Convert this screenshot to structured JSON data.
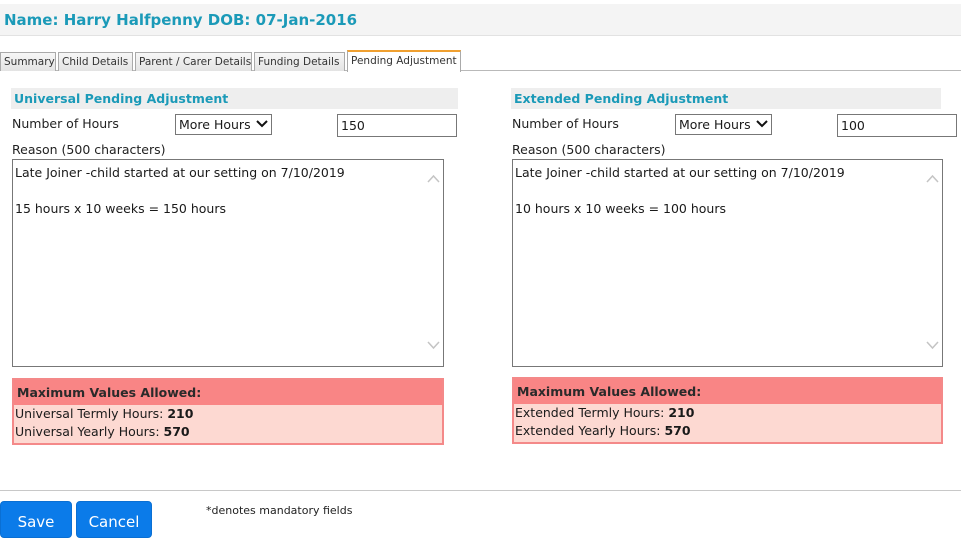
{
  "header": {
    "title": "Name: Harry Halfpenny DOB: 07-Jan-2016"
  },
  "tabs": [
    {
      "label": "Summary"
    },
    {
      "label": "Child Details"
    },
    {
      "label": "Parent / Carer Details"
    },
    {
      "label": "Funding Details"
    },
    {
      "label": "Pending Adjustment"
    }
  ],
  "active_tab": "Pending Adjustment",
  "universal": {
    "title": "Universal Pending Adjustment",
    "hours_label": "Number of Hours",
    "hours_type": "More Hours",
    "hours_value": "150",
    "reason_label": "Reason (500 characters)",
    "reason_line1": "Late Joiner -child started at our setting on 7/10/2019",
    "reason_line2": "15 hours x 10 weeks = 150 hours",
    "max_title": "Maximum Values Allowed:",
    "termly_label": "Universal Termly Hours:",
    "termly_value": "210",
    "yearly_label": "Universal Yearly Hours:",
    "yearly_value": "570"
  },
  "extended": {
    "title": "Extended Pending Adjustment",
    "hours_label": "Number of Hours",
    "hours_type": "More Hours",
    "hours_value": "100",
    "reason_label": "Reason (500 characters)",
    "reason_line1": "Late Joiner -child started at our setting on 7/10/2019",
    "reason_line2": "10 hours x 10 weeks = 100 hours",
    "max_title": "Maximum Values Allowed:",
    "termly_label": "Extended Termly Hours:",
    "termly_value": "210",
    "yearly_label": "Extended Yearly Hours:",
    "yearly_value": "570"
  },
  "footer": {
    "save_label": "Save",
    "cancel_label": "Cancel",
    "mandatory_note": "*denotes mandatory fields"
  },
  "colors": {
    "title": "#1b9ab8",
    "button": "#0b7be9",
    "max_header": "#f98585",
    "max_body": "#fdd9d2",
    "active_tab_accent": "#f0a030"
  }
}
